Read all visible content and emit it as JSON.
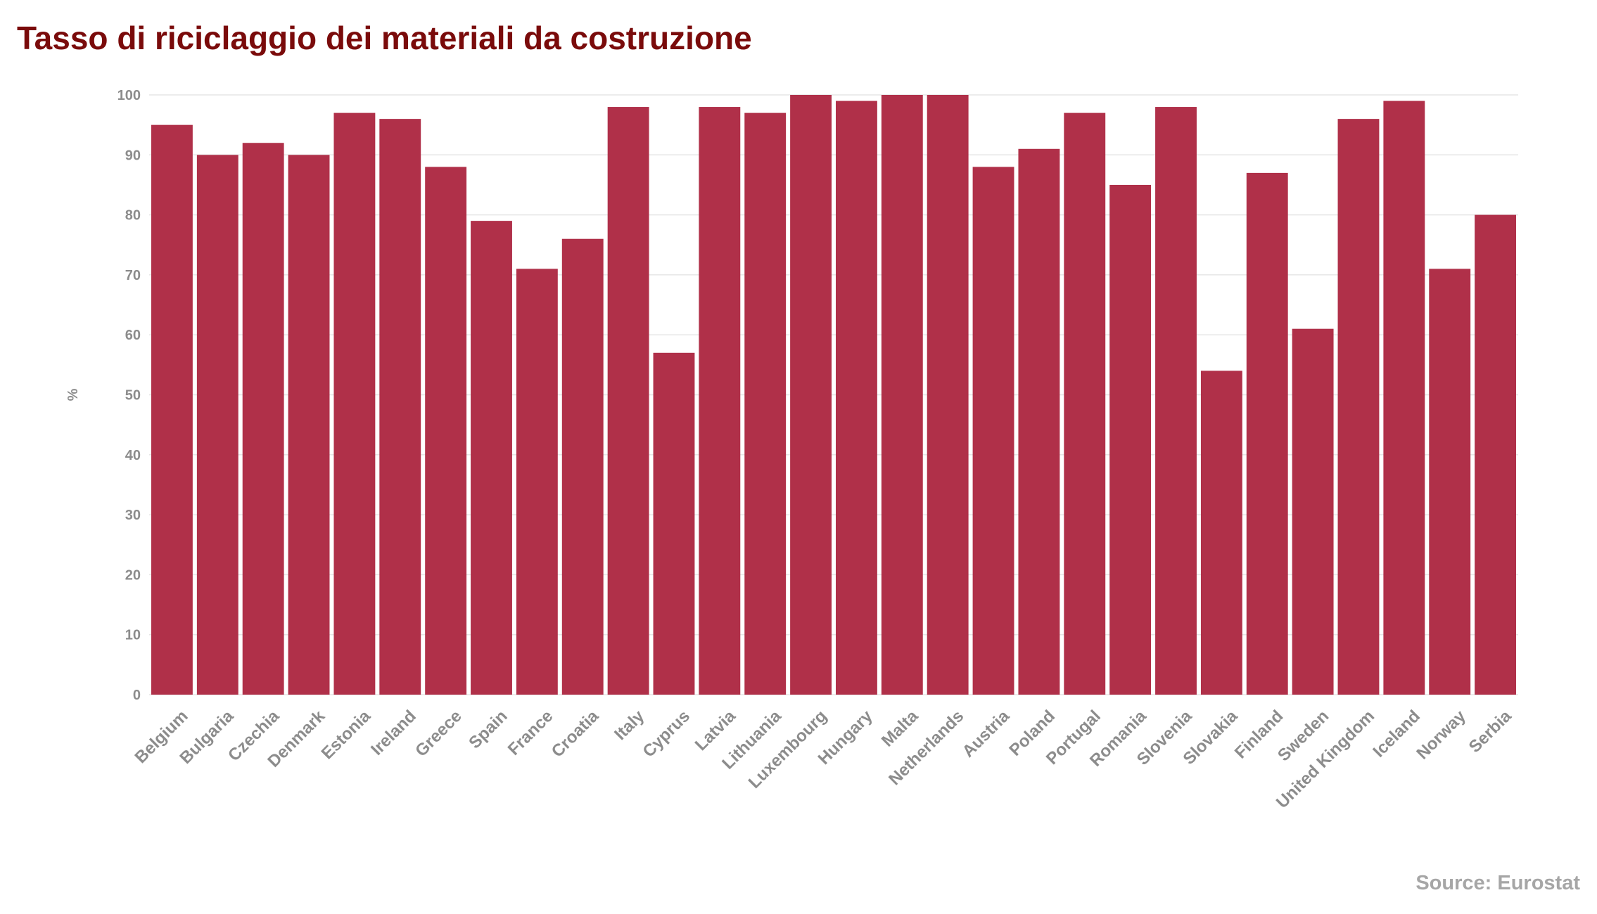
{
  "chart_data": {
    "type": "bar",
    "title": "Tasso di riciclaggio dei materiali da costruzione",
    "xlabel": "",
    "ylabel": "%",
    "ylim": [
      0,
      100
    ],
    "yticks": [
      0,
      10,
      20,
      30,
      40,
      50,
      60,
      70,
      80,
      90,
      100
    ],
    "grid": true,
    "legend": "none",
    "bar_color": "#b03049",
    "categories": [
      "Belgium",
      "Bulgaria",
      "Czechia",
      "Denmark",
      "Estonia",
      "Ireland",
      "Greece",
      "Spain",
      "France",
      "Croatia",
      "Italy",
      "Cyprus",
      "Latvia",
      "Lithuania",
      "Luxembourg",
      "Hungary",
      "Malta",
      "Netherlands",
      "Austria",
      "Poland",
      "Portugal",
      "Romania",
      "Slovenia",
      "Slovakia",
      "Finland",
      "Sweden",
      "United Kingdom",
      "Iceland",
      "Norway",
      "Serbia"
    ],
    "values": [
      95,
      90,
      92,
      90,
      97,
      96,
      88,
      79,
      71,
      76,
      98,
      57,
      98,
      97,
      100,
      99,
      100,
      100,
      88,
      91,
      97,
      85,
      98,
      54,
      87,
      61,
      96,
      99,
      71,
      80
    ],
    "source": "Source: Eurostat"
  },
  "colors": {
    "title": "#7a0b0b",
    "bar": "#b03049",
    "tick_text": "#8c8c8c",
    "source_text": "#a6a6a6",
    "grid": "#e6e6e6"
  }
}
